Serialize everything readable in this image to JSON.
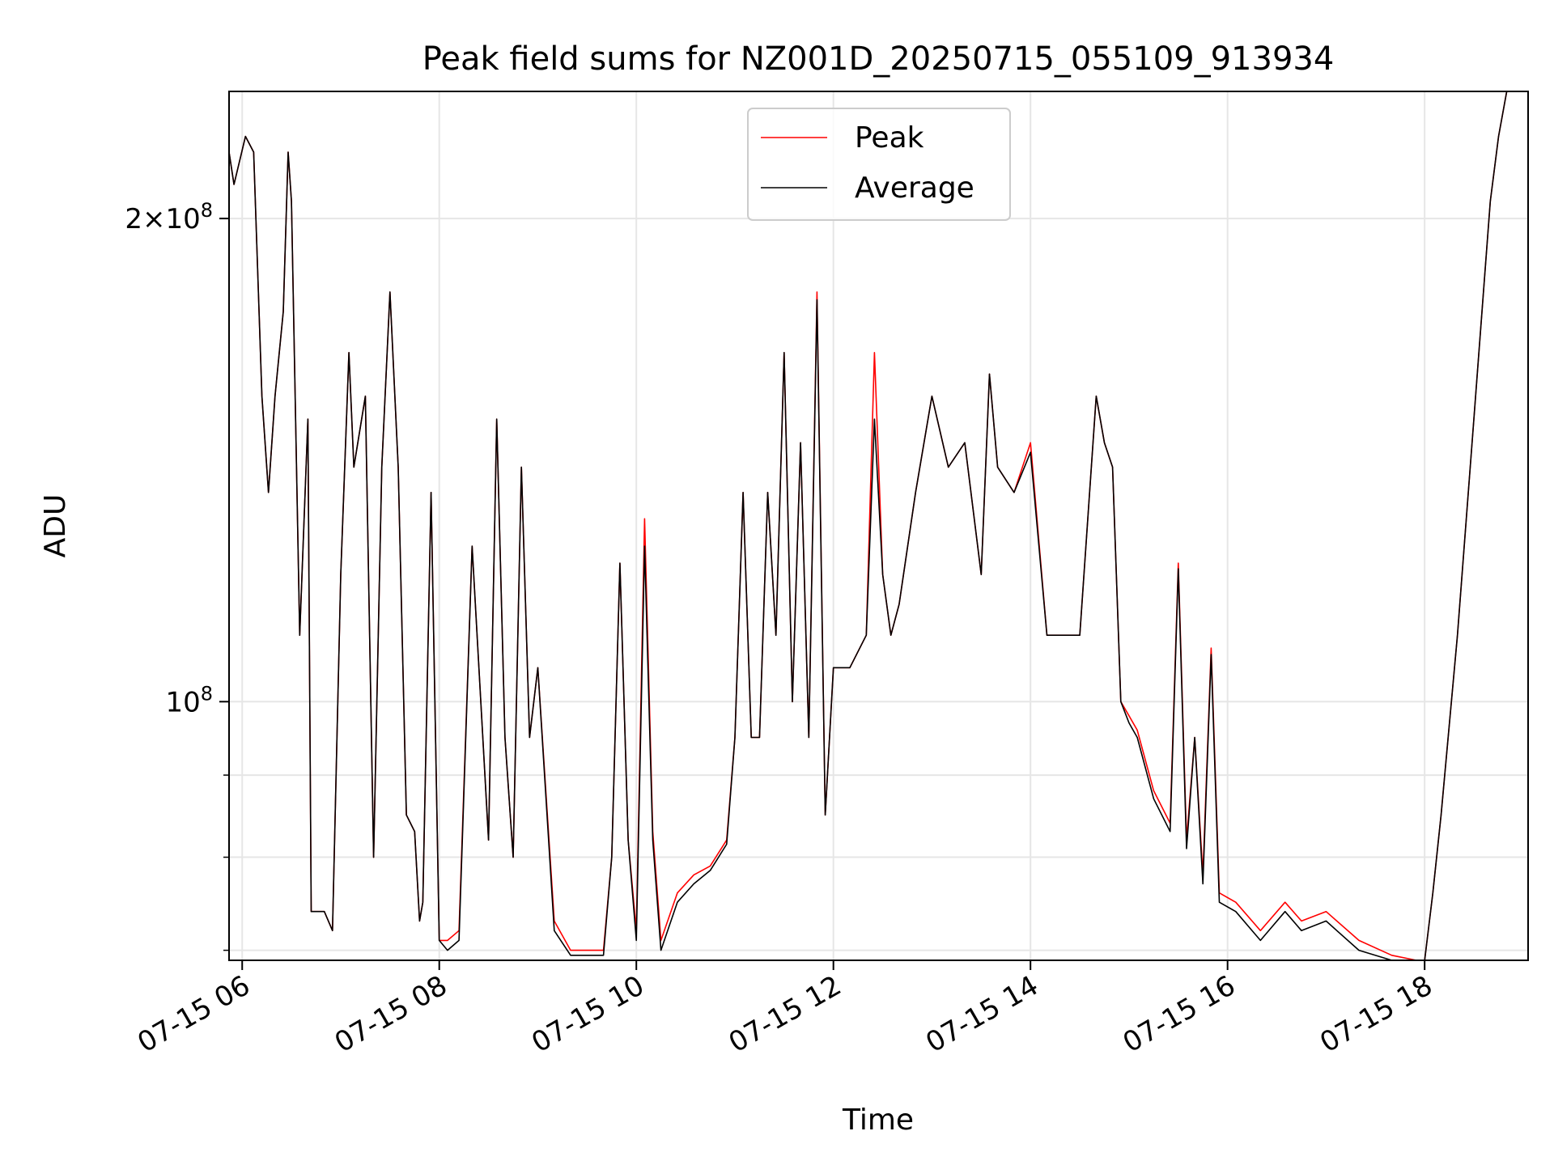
{
  "chart_data": {
    "type": "line",
    "title": "Peak field sums for NZ001D_20250715_055109_913934",
    "xlabel": "Time",
    "ylabel": "ADU",
    "y_scale": "log",
    "grid": true,
    "legend_position": "upper center",
    "x_range": [
      "2025-07-15 05:52",
      "2025-07-15 19:03"
    ],
    "y_range": [
      69000000.0,
      240000000.0
    ],
    "x_ticks": [
      "2025-07-15 06:00",
      "2025-07-15 08:00",
      "2025-07-15 10:00",
      "2025-07-15 12:00",
      "2025-07-15 14:00",
      "2025-07-15 16:00",
      "2025-07-15 18:00"
    ],
    "x_tick_labels": [
      "07-15 06",
      "07-15 08",
      "07-15 10",
      "07-15 12",
      "07-15 14",
      "07-15 16",
      "07-15 18"
    ],
    "y_ticks": [
      100000000.0,
      200000000.0
    ],
    "y_tick_labels": [
      {
        "mantissa": "",
        "exponent": "8"
      },
      {
        "mantissa": "2",
        "exponent": "8"
      }
    ],
    "y_minor_ticks": [
      70000000.0,
      80000000.0,
      90000000.0
    ],
    "colors": {
      "peak": "#ff0000",
      "average": "#000000"
    },
    "x": [
      "05:52",
      "05:55",
      "06:02",
      "06:07",
      "06:12",
      "06:16",
      "06:20",
      "06:25",
      "06:28",
      "06:30",
      "06:35",
      "06:40",
      "06:42",
      "06:50",
      "06:55",
      "07:00",
      "07:05",
      "07:08",
      "07:15",
      "07:20",
      "07:25",
      "07:30",
      "07:35",
      "07:40",
      "07:45",
      "07:48",
      "07:50",
      "07:55",
      "08:00",
      "08:05",
      "08:12",
      "08:20",
      "08:30",
      "08:35",
      "08:40",
      "08:45",
      "08:50",
      "08:55",
      "09:00",
      "09:10",
      "09:20",
      "09:30",
      "09:40",
      "09:45",
      "09:50",
      "09:55",
      "10:00",
      "10:05",
      "10:10",
      "10:15",
      "10:25",
      "10:35",
      "10:45",
      "10:55",
      "11:00",
      "11:05",
      "11:10",
      "11:15",
      "11:20",
      "11:25",
      "11:30",
      "11:35",
      "11:40",
      "11:45",
      "11:50",
      "11:55",
      "12:00",
      "12:10",
      "12:20",
      "12:25",
      "12:30",
      "12:35",
      "12:40",
      "12:50",
      "13:00",
      "13:10",
      "13:20",
      "13:30",
      "13:35",
      "13:40",
      "13:50",
      "14:00",
      "14:10",
      "14:20",
      "14:30",
      "14:40",
      "14:45",
      "14:50",
      "14:55",
      "15:00",
      "15:05",
      "15:15",
      "15:25",
      "15:30",
      "15:35",
      "15:40",
      "15:45",
      "15:50",
      "15:55",
      "16:05",
      "16:20",
      "16:35",
      "16:45",
      "17:00",
      "17:20",
      "17:40",
      "17:55",
      "18:00",
      "18:05",
      "18:10",
      "18:20",
      "18:30",
      "18:40",
      "18:45",
      "18:50",
      "18:55",
      "19:03"
    ],
    "series": [
      {
        "name": "Peak",
        "values": [
          220000000.0,
          210000000.0,
          225000000.0,
          220000000.0,
          155000000.0,
          135000000.0,
          155000000.0,
          175000000.0,
          220000000.0,
          205000000.0,
          110000000.0,
          150000000.0,
          74000000.0,
          74000000.0,
          72000000.0,
          120000000.0,
          165000000.0,
          140000000.0,
          155000000.0,
          80000000.0,
          140000000.0,
          180000000.0,
          140000000.0,
          85000000.0,
          83000000.0,
          73000000.0,
          75000000.0,
          135000000.0,
          71000000.0,
          71000000.0,
          72000000.0,
          125000000.0,
          82000000.0,
          150000000.0,
          95000000.0,
          80000000.0,
          140000000.0,
          95000000.0,
          105000000.0,
          73000000.0,
          70000000.0,
          70000000.0,
          70000000.0,
          80000000.0,
          122000000.0,
          82000000.0,
          72000000.0,
          130000000.0,
          83000000.0,
          71000000.0,
          76000000.0,
          78000000.0,
          79000000.0,
          82000000.0,
          95000000.0,
          135000000.0,
          95000000.0,
          95000000.0,
          135000000.0,
          110000000.0,
          165000000.0,
          100000000.0,
          145000000.0,
          95000000.0,
          180000000.0,
          85000000.0,
          105000000.0,
          105000000.0,
          110000000.0,
          165000000.0,
          120000000.0,
          110000000.0,
          115000000.0,
          135000000.0,
          155000000.0,
          140000000.0,
          145000000.0,
          120000000.0,
          160000000.0,
          140000000.0,
          135000000.0,
          145000000.0,
          110000000.0,
          110000000.0,
          110000000.0,
          155000000.0,
          145000000.0,
          140000000.0,
          100000000.0,
          98000000.0,
          96000000.0,
          88000000.0,
          84000000.0,
          122000000.0,
          82000000.0,
          95000000.0,
          78000000.0,
          108000000.0,
          76000000.0,
          75000000.0,
          72000000.0,
          75000000.0,
          73000000.0,
          74000000.0,
          71000000.0,
          69500000.0,
          69000000.0,
          69000000.0,
          76000000.0,
          85000000.0,
          110000000.0,
          150000000.0,
          205000000.0,
          225000000.0,
          240000000.0,
          240000000.0,
          240000000.0
        ]
      },
      {
        "name": "Average",
        "values": [
          220000000.0,
          210000000.0,
          225000000.0,
          220000000.0,
          155000000.0,
          135000000.0,
          155000000.0,
          175000000.0,
          220000000.0,
          205000000.0,
          110000000.0,
          150000000.0,
          74000000.0,
          74000000.0,
          72000000.0,
          120000000.0,
          165000000.0,
          140000000.0,
          155000000.0,
          80000000.0,
          140000000.0,
          180000000.0,
          140000000.0,
          85000000.0,
          83000000.0,
          73000000.0,
          75000000.0,
          135000000.0,
          71000000.0,
          70000000.0,
          71000000.0,
          125000000.0,
          82000000.0,
          150000000.0,
          95000000.0,
          80000000.0,
          140000000.0,
          95000000.0,
          105000000.0,
          72000000.0,
          69500000.0,
          69500000.0,
          69500000.0,
          80000000.0,
          122000000.0,
          82000000.0,
          71000000.0,
          125000000.0,
          82000000.0,
          70000000.0,
          75000000.0,
          77000000.0,
          78500000.0,
          81500000.0,
          95000000.0,
          135000000.0,
          95000000.0,
          95000000.0,
          135000000.0,
          110000000.0,
          165000000.0,
          100000000.0,
          145000000.0,
          95000000.0,
          178000000.0,
          85000000.0,
          105000000.0,
          105000000.0,
          110000000.0,
          150000000.0,
          120000000.0,
          110000000.0,
          115000000.0,
          135000000.0,
          155000000.0,
          140000000.0,
          145000000.0,
          120000000.0,
          160000000.0,
          140000000.0,
          135000000.0,
          143000000.0,
          110000000.0,
          110000000.0,
          110000000.0,
          155000000.0,
          145000000.0,
          140000000.0,
          100000000.0,
          97000000.0,
          95000000.0,
          87000000.0,
          83000000.0,
          121000000.0,
          81000000.0,
          95000000.0,
          77000000.0,
          107000000.0,
          75000000.0,
          74000000.0,
          71000000.0,
          74000000.0,
          72000000.0,
          73000000.0,
          70000000.0,
          69000000.0,
          68500000.0,
          68500000.0,
          76000000.0,
          85000000.0,
          110000000.0,
          150000000.0,
          205000000.0,
          225000000.0,
          240000000.0,
          240000000.0,
          240000000.0
        ]
      }
    ]
  }
}
